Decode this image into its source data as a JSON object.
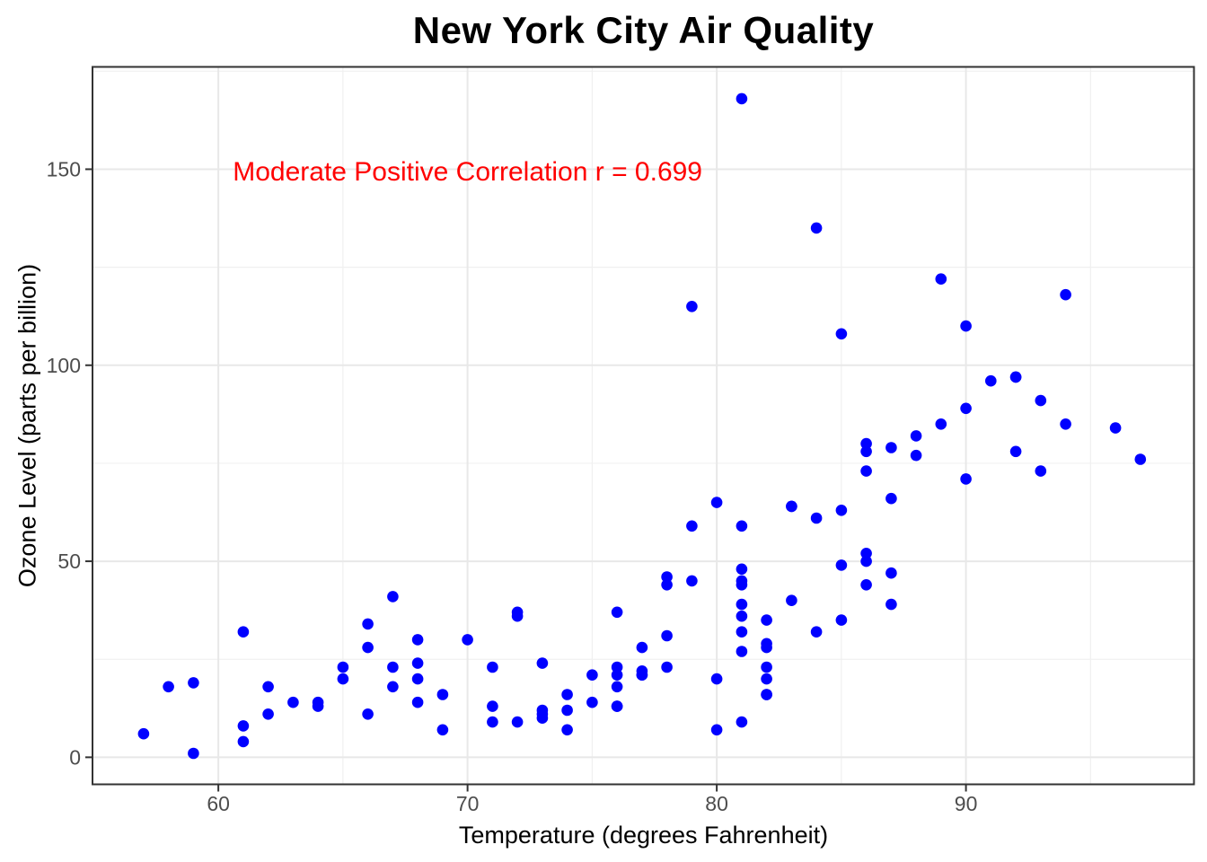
{
  "chart_data": {
    "type": "scatter",
    "title": "New York City Air Quality",
    "xlabel": "Temperature (degrees Fahrenheit)",
    "ylabel": "Ozone Level (parts per billion)",
    "annotation": {
      "text": "Moderate Positive Correlation r = 0.699",
      "x": 70,
      "y": 150
    },
    "x_ticks": [
      60,
      70,
      80,
      90
    ],
    "x_minor_ticks": [
      65,
      75,
      85,
      95
    ],
    "y_ticks": [
      0,
      50,
      100,
      150
    ],
    "y_minor_ticks": [
      25,
      75,
      125,
      175
    ],
    "xlim": [
      54.95,
      99.15
    ],
    "ylim": [
      -6.9,
      176.1
    ],
    "grid": true,
    "legend": "none",
    "correlation_r": 0.699,
    "n_points": 116,
    "points_format": "[temperature_F, ozone_ppb]",
    "points": [
      [
        67,
        41
      ],
      [
        72,
        36
      ],
      [
        74,
        12
      ],
      [
        62,
        18
      ],
      [
        66,
        28
      ],
      [
        65,
        23
      ],
      [
        59,
        19
      ],
      [
        61,
        8
      ],
      [
        74,
        7
      ],
      [
        69,
        16
      ],
      [
        66,
        11
      ],
      [
        68,
        14
      ],
      [
        58,
        18
      ],
      [
        64,
        14
      ],
      [
        66,
        34
      ],
      [
        57,
        6
      ],
      [
        68,
        30
      ],
      [
        62,
        11
      ],
      [
        59,
        1
      ],
      [
        73,
        11
      ],
      [
        61,
        4
      ],
      [
        61,
        32
      ],
      [
        67,
        23
      ],
      [
        81,
        45
      ],
      [
        79,
        115
      ],
      [
        76,
        37
      ],
      [
        82,
        29
      ],
      [
        90,
        71
      ],
      [
        87,
        39
      ],
      [
        82,
        23
      ],
      [
        77,
        21
      ],
      [
        72,
        37
      ],
      [
        65,
        20
      ],
      [
        73,
        12
      ],
      [
        76,
        13
      ],
      [
        84,
        135
      ],
      [
        85,
        49
      ],
      [
        81,
        32
      ],
      [
        83,
        64
      ],
      [
        83,
        40
      ],
      [
        88,
        77
      ],
      [
        92,
        97
      ],
      [
        92,
        97
      ],
      [
        89,
        85
      ],
      [
        73,
        10
      ],
      [
        81,
        27
      ],
      [
        80,
        7
      ],
      [
        81,
        48
      ],
      [
        82,
        35
      ],
      [
        84,
        61
      ],
      [
        87,
        79
      ],
      [
        85,
        63
      ],
      [
        74,
        16
      ],
      [
        86,
        80
      ],
      [
        85,
        108
      ],
      [
        82,
        20
      ],
      [
        86,
        52
      ],
      [
        88,
        82
      ],
      [
        86,
        50
      ],
      [
        83,
        64
      ],
      [
        81,
        59
      ],
      [
        81,
        39
      ],
      [
        81,
        9
      ],
      [
        82,
        16
      ],
      [
        86,
        78
      ],
      [
        85,
        35
      ],
      [
        87,
        66
      ],
      [
        89,
        122
      ],
      [
        90,
        89
      ],
      [
        90,
        110
      ],
      [
        86,
        44
      ],
      [
        82,
        28
      ],
      [
        80,
        65
      ],
      [
        77,
        22
      ],
      [
        79,
        59
      ],
      [
        76,
        23
      ],
      [
        78,
        31
      ],
      [
        78,
        44
      ],
      [
        77,
        21
      ],
      [
        72,
        9
      ],
      [
        79,
        45
      ],
      [
        81,
        168
      ],
      [
        86,
        73
      ],
      [
        97,
        76
      ],
      [
        94,
        118
      ],
      [
        96,
        84
      ],
      [
        94,
        85
      ],
      [
        91,
        96
      ],
      [
        92,
        78
      ],
      [
        93,
        73
      ],
      [
        93,
        91
      ],
      [
        87,
        47
      ],
      [
        84,
        32
      ],
      [
        80,
        20
      ],
      [
        78,
        23
      ],
      [
        75,
        21
      ],
      [
        73,
        24
      ],
      [
        81,
        44
      ],
      [
        76,
        21
      ],
      [
        77,
        28
      ],
      [
        71,
        9
      ],
      [
        71,
        13
      ],
      [
        78,
        46
      ],
      [
        67,
        18
      ],
      [
        76,
        13
      ],
      [
        68,
        24
      ],
      [
        82,
        16
      ],
      [
        64,
        13
      ],
      [
        71,
        23
      ],
      [
        81,
        36
      ],
      [
        69,
        7
      ],
      [
        63,
        14
      ],
      [
        70,
        30
      ],
      [
        75,
        14
      ],
      [
        76,
        18
      ],
      [
        68,
        20
      ]
    ]
  },
  "style": {
    "point_color": "#0000FF",
    "annotation_color": "#FF0000",
    "title_color": "#000000",
    "panel_border_color": "#333333",
    "tick_mark_color": "#333333",
    "tick_label_color": "#4D4D4D",
    "grid_major_color": "#E8E8E8",
    "grid_minor_color": "#F0F0F0",
    "background_color": "#FFFFFF"
  }
}
